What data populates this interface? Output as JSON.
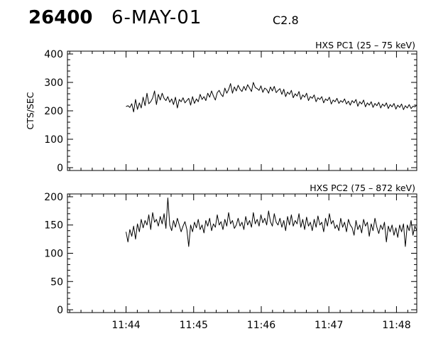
{
  "header": {
    "event_number": "26400",
    "date": "6-MAY-01",
    "flare_class": "C2.8"
  },
  "colors": {
    "background": "#ffffff",
    "axis": "#000000",
    "trace": "#000000"
  },
  "chart_data": [
    {
      "type": "line",
      "title": "HXS PC1 (25 – 75 keV)",
      "ylabel": "CTS/SEC",
      "xlabel": "",
      "xlim": [
        "11:43:08",
        "11:48:18"
      ],
      "ylim": [
        -10,
        410
      ],
      "yticks": [
        0,
        100,
        200,
        300,
        400
      ],
      "grid": false,
      "x_start": "11:44:00",
      "x_end": "11:48:18",
      "series": [
        {
          "values": [
            215,
            218,
            212,
            225,
            196,
            240,
            205,
            228,
            210,
            248,
            218,
            262,
            225,
            232,
            245,
            270,
            222,
            258,
            238,
            262,
            244,
            236,
            250,
            230,
            242,
            222,
            248,
            210,
            240,
            232,
            246,
            228,
            236,
            244,
            220,
            250,
            226,
            242,
            232,
            258,
            240,
            250,
            236,
            262,
            248,
            270,
            252,
            238,
            264,
            272,
            258,
            250,
            280,
            262,
            275,
            296,
            262,
            284,
            270,
            290,
            276,
            268,
            286,
            272,
            292,
            280,
            268,
            300,
            282,
            278,
            272,
            288,
            265,
            280,
            275,
            262,
            284,
            270,
            286,
            264,
            272,
            278,
            258,
            276,
            250,
            266,
            258,
            272,
            246,
            260,
            252,
            268,
            240,
            256,
            248,
            262,
            236,
            250,
            244,
            256,
            232,
            246,
            240,
            250,
            228,
            242,
            236,
            248,
            224,
            238,
            232,
            244,
            226,
            236,
            230,
            242,
            224,
            234,
            220,
            236,
            228,
            240,
            216,
            232,
            224,
            238,
            214,
            228,
            220,
            232,
            212,
            226,
            218,
            230,
            210,
            224,
            216,
            228,
            208,
            222,
            214,
            226,
            206,
            220,
            212,
            224,
            204,
            218,
            210,
            222,
            208,
            216,
            214,
            220
          ],
          "color": "#000000"
        }
      ]
    },
    {
      "type": "line",
      "title": "HXS PC2 (75 – 872 keV)",
      "ylabel": "",
      "xlabel": "",
      "xlim": [
        "11:43:08",
        "11:48:18"
      ],
      "ylim": [
        -5,
        205
      ],
      "yticks": [
        0,
        50,
        100,
        150,
        200
      ],
      "xticks": [
        "11:44",
        "11:45",
        "11:46",
        "11:47",
        "11:48"
      ],
      "grid": false,
      "x_start": "11:44:00",
      "x_end": "11:48:18",
      "series": [
        {
          "values": [
            138,
            120,
            142,
            130,
            148,
            125,
            152,
            138,
            160,
            145,
            158,
            150,
            168,
            142,
            172,
            155,
            160,
            148,
            165,
            152,
            170,
            144,
            198,
            150,
            140,
            158,
            146,
            162,
            150,
            138,
            148,
            156,
            142,
            112,
            150,
            138,
            155,
            145,
            160,
            142,
            150,
            136,
            158,
            148,
            162,
            140,
            152,
            146,
            168,
            150,
            156,
            142,
            160,
            148,
            172,
            152,
            158,
            144,
            150,
            162,
            148,
            155,
            142,
            165,
            150,
            158,
            146,
            172,
            152,
            160,
            148,
            168,
            154,
            162,
            150,
            175,
            156,
            148,
            170,
            155,
            150,
            162,
            146,
            158,
            140,
            165,
            150,
            168,
            148,
            158,
            152,
            170,
            146,
            160,
            142,
            164,
            148,
            155,
            140,
            160,
            146,
            166,
            150,
            155,
            138,
            162,
            148,
            170,
            152,
            158,
            144,
            150,
            140,
            162,
            146,
            155,
            138,
            160,
            150,
            145,
            132,
            158,
            142,
            150,
            136,
            160,
            148,
            155,
            130,
            152,
            140,
            162,
            146,
            135,
            150,
            142,
            155,
            120,
            148,
            138,
            150,
            132,
            145,
            128,
            150,
            138,
            152,
            112,
            150,
            140,
            158,
            132,
            148,
            140
          ],
          "color": "#000000"
        }
      ]
    }
  ]
}
